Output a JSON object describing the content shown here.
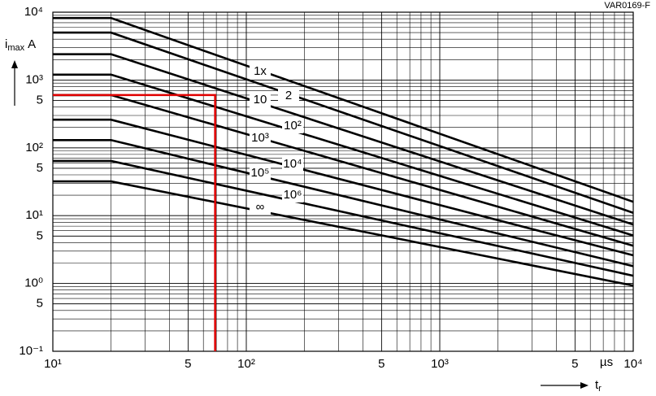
{
  "chart_data": {
    "type": "line",
    "figure_id": "VAR0169-F",
    "ylabel": {
      "text": "i",
      "sub": "max",
      "unit": "A"
    },
    "xlabel": {
      "text": "t",
      "sub": "r"
    },
    "x_unit": "µs",
    "xscale": "log",
    "yscale": "log",
    "grid": true,
    "line_color": "#000000",
    "xlim": [
      10,
      10000
    ],
    "ylim": [
      0.1,
      10000
    ],
    "xticks": [
      {
        "value": 10,
        "label": "10¹"
      },
      {
        "value": 50,
        "label": "5"
      },
      {
        "value": 100,
        "label": "10²"
      },
      {
        "value": 500,
        "label": "5"
      },
      {
        "value": 1000,
        "label": "10³"
      },
      {
        "value": 5000,
        "label": "5"
      },
      {
        "value": 10000,
        "label": "10⁴"
      }
    ],
    "yticks": [
      {
        "value": 10000,
        "label": "10⁴"
      },
      {
        "value": 1000,
        "label": "10³"
      },
      {
        "value": 500,
        "label": "5"
      },
      {
        "value": 100,
        "label": "10²"
      },
      {
        "value": 50,
        "label": "5"
      },
      {
        "value": 10,
        "label": "10¹"
      },
      {
        "value": 5,
        "label": "5"
      },
      {
        "value": 1,
        "label": "10⁰"
      },
      {
        "value": 0.5,
        "label": "5"
      },
      {
        "value": 0.1,
        "label": "10⁻¹"
      }
    ],
    "x": [
      10,
      20,
      10000
    ],
    "series": [
      {
        "name": "1x",
        "values": [
          8200,
          8200,
          16
        ]
      },
      {
        "name": "2",
        "values": [
          5000,
          5000,
          11
        ]
      },
      {
        "name": "10",
        "values": [
          2400,
          2400,
          7.4
        ]
      },
      {
        "name": "10²",
        "values": [
          1200,
          1200,
          5.1
        ]
      },
      {
        "name": "10³",
        "values": [
          600,
          600,
          3.6
        ]
      },
      {
        "name": "10⁴",
        "values": [
          260,
          260,
          2.6
        ]
      },
      {
        "name": "10⁵",
        "values": [
          130,
          130,
          1.8
        ]
      },
      {
        "name": "10⁶",
        "values": [
          64,
          64,
          1.3
        ]
      },
      {
        "name": "∞",
        "values": [
          32,
          32,
          0.93
        ]
      }
    ],
    "highlight": {
      "color": "#e00000",
      "x": 69,
      "y": 600
    }
  }
}
